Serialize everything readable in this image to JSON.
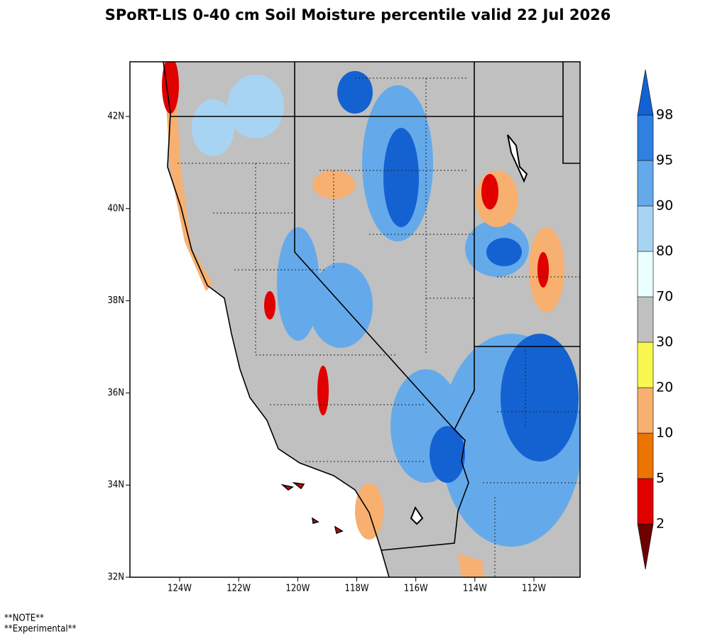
{
  "title": "SPoRT-LIS 0-40 cm Soil Moisture percentile valid 22 Jul 2026",
  "map": {
    "lat_ticks": [
      "42N",
      "40N",
      "38N",
      "36N",
      "34N",
      "32N"
    ],
    "lon_ticks": [
      "124W",
      "122W",
      "120W",
      "118W",
      "116W",
      "114W",
      "112W"
    ]
  },
  "colorbar": {
    "levels": [
      2,
      5,
      10,
      20,
      30,
      70,
      80,
      90,
      95,
      98
    ],
    "colors": [
      "#6e0000",
      "#e00000",
      "#ec7400",
      "#f7b070",
      "#f8f850",
      "#c0c0c0",
      "#eaffff",
      "#a8d4f4",
      "#64aaea",
      "#3080e0",
      "#1462d2"
    ]
  },
  "notes": [
    "**NOTE**",
    "**Experimental**"
  ]
}
